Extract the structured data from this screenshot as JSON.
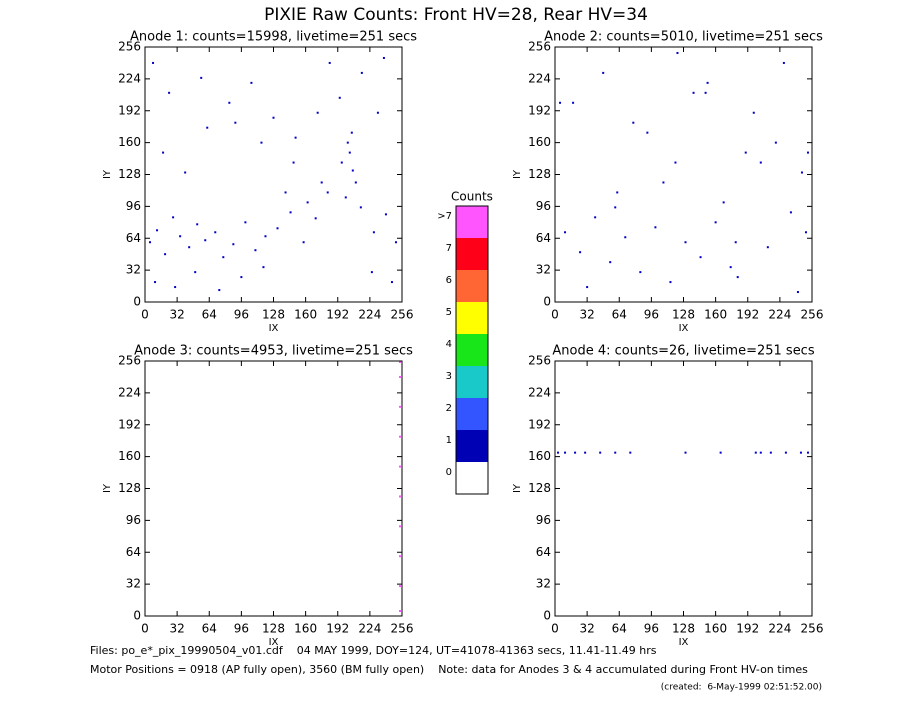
{
  "title": "PIXIE Raw Counts:  Front HV=28, Rear HV=34",
  "chart_data": [
    {
      "type": "scatter",
      "title": "Anode 1: counts=15998, livetime=251 secs",
      "x_label": "IX",
      "y_label": "IY",
      "xlim": [
        0,
        256
      ],
      "ylim": [
        0,
        256
      ],
      "xticks": [
        0,
        32,
        64,
        96,
        128,
        160,
        192,
        224,
        256
      ],
      "yticks": [
        0,
        32,
        64,
        96,
        128,
        160,
        192,
        224,
        256
      ],
      "color": "#0000c8",
      "x": [
        5,
        12,
        20,
        28,
        35,
        44,
        52,
        60,
        70,
        78,
        88,
        100,
        110,
        120,
        132,
        145,
        158,
        170,
        182,
        196,
        204,
        207,
        210,
        202,
        206,
        215,
        228,
        240,
        250,
        18,
        40,
        62,
        84,
        106,
        128,
        150,
        172,
        194,
        216,
        238,
        10,
        30,
        50,
        74,
        96,
        118,
        140,
        162,
        184,
        226,
        246,
        8,
        24,
        56,
        90,
        116,
        148,
        176,
        200,
        232
      ],
      "y": [
        60,
        72,
        48,
        85,
        66,
        55,
        78,
        62,
        70,
        45,
        58,
        80,
        52,
        66,
        74,
        90,
        60,
        84,
        110,
        140,
        150,
        132,
        120,
        160,
        170,
        95,
        70,
        88,
        60,
        150,
        130,
        175,
        200,
        220,
        185,
        165,
        190,
        205,
        230,
        245,
        20,
        15,
        30,
        12,
        25,
        35,
        110,
        100,
        240,
        30,
        20,
        240,
        210,
        225,
        180,
        160,
        140,
        120,
        105,
        190
      ]
    },
    {
      "type": "scatter",
      "title": "Anode 2: counts=5010, livetime=251 secs",
      "x_label": "IX",
      "y_label": "IY",
      "xlim": [
        0,
        256
      ],
      "ylim": [
        0,
        256
      ],
      "xticks": [
        0,
        32,
        64,
        96,
        128,
        160,
        192,
        224,
        256
      ],
      "yticks": [
        0,
        32,
        64,
        96,
        128,
        160,
        192,
        224,
        256
      ],
      "color": "#0000c8",
      "x": [
        10,
        25,
        40,
        55,
        70,
        85,
        100,
        115,
        130,
        145,
        160,
        175,
        190,
        205,
        220,
        235,
        250,
        18,
        48,
        78,
        108,
        138,
        168,
        198,
        228,
        246,
        32,
        62,
        92,
        122,
        152,
        182,
        212,
        242,
        5,
        252,
        60,
        120,
        180,
        150
      ],
      "y": [
        70,
        50,
        85,
        40,
        65,
        30,
        75,
        20,
        60,
        45,
        80,
        35,
        150,
        140,
        160,
        90,
        70,
        200,
        230,
        180,
        120,
        210,
        100,
        190,
        240,
        130,
        15,
        110,
        170,
        250,
        220,
        25,
        55,
        10,
        200,
        150,
        95,
        140,
        60,
        210
      ]
    },
    {
      "type": "scatter",
      "title": "Anode 3: counts=4953, livetime=251 secs",
      "x_label": "IX",
      "y_label": "IY",
      "xlim": [
        0,
        256
      ],
      "ylim": [
        0,
        256
      ],
      "xticks": [
        0,
        32,
        64,
        96,
        128,
        160,
        192,
        224,
        256
      ],
      "yticks": [
        0,
        32,
        64,
        96,
        128,
        160,
        192,
        224,
        256
      ],
      "color": "#ff55ff",
      "x": [
        254,
        254,
        254,
        254,
        254,
        254,
        254,
        254,
        254,
        254
      ],
      "y": [
        5,
        30,
        60,
        90,
        120,
        150,
        180,
        210,
        240,
        255
      ]
    },
    {
      "type": "scatter",
      "title": "Anode 4: counts=26, livetime=251 secs",
      "x_label": "IX",
      "y_label": "IY",
      "xlim": [
        0,
        256
      ],
      "ylim": [
        0,
        256
      ],
      "xticks": [
        0,
        32,
        64,
        96,
        128,
        160,
        192,
        224,
        256
      ],
      "yticks": [
        0,
        32,
        64,
        96,
        128,
        160,
        192,
        224,
        256
      ],
      "color": "#0000c8",
      "x": [
        3,
        10,
        20,
        30,
        45,
        60,
        75,
        130,
        165,
        200,
        205,
        215,
        230,
        245,
        252
      ],
      "y": [
        164,
        164,
        164,
        164,
        164,
        164,
        164,
        164,
        164,
        164,
        164,
        164,
        164,
        164,
        164
      ]
    }
  ],
  "colorbar": {
    "title": "Counts",
    "labels": [
      "0",
      "1",
      "2",
      "3",
      "4",
      "5",
      "6",
      "7",
      ">7"
    ],
    "colors": [
      "#ffffff",
      "#0000b4",
      "#3355ff",
      "#19c8c8",
      "#19e619",
      "#ffff00",
      "#ff6633",
      "#ff0019",
      "#ff55ff"
    ]
  },
  "footer": {
    "files": "Files: po_e*_pix_19990504_v01.cdf    04 MAY 1999, DOY=124, UT=41078-41363 secs, 11.41-11.49 hrs",
    "motor": "Motor Positions = 0918 (AP fully open), 3560 (BM fully open)    Note: data for Anodes 3 & 4 accumulated during Front HV-on times",
    "created": "(created:  6-May-1999 02:51:52.00)"
  }
}
